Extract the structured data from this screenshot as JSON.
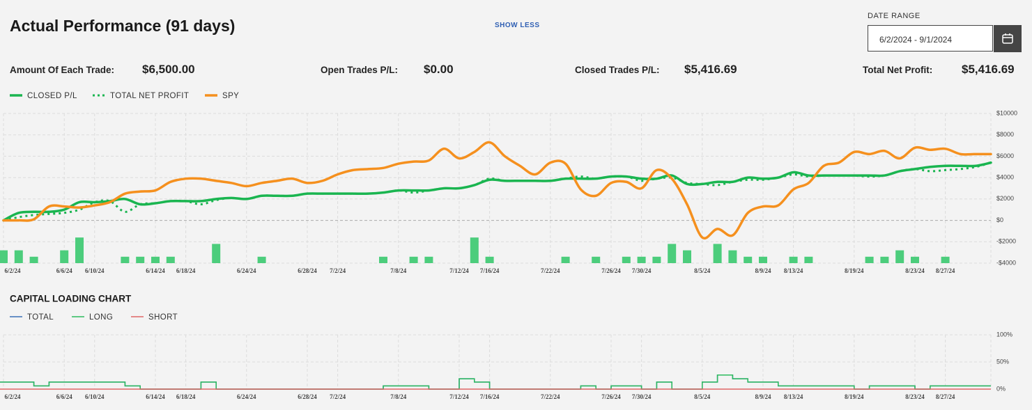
{
  "header": {
    "title": "Actual Performance (91 days)",
    "toggle": "SHOW LESS",
    "date_range": {
      "label": "DATE RANGE",
      "value": "6/2/2024 - 9/1/2024"
    }
  },
  "stats": [
    {
      "label": "Amount Of Each Trade:",
      "value": "$6,500.00"
    },
    {
      "label": "Open Trades P/L:",
      "value": "$0.00"
    },
    {
      "label": "Closed Trades P/L:",
      "value": "$5,416.69"
    },
    {
      "label": "Total Net Profit:",
      "value": "$5,416.69"
    }
  ],
  "charts": [
    {
      "type": "line",
      "categories": [
        "6/2/24",
        null,
        null,
        null,
        "6/6/24",
        null,
        "6/10/24",
        null,
        null,
        null,
        "6/14/24",
        null,
        "6/18/24",
        null,
        null,
        null,
        "6/24/24",
        null,
        null,
        null,
        "6/28/24",
        null,
        "7/2/24",
        null,
        null,
        null,
        "7/8/24",
        null,
        null,
        null,
        "7/12/24",
        null,
        "7/16/24",
        null,
        null,
        null,
        "7/22/24",
        null,
        null,
        null,
        "7/26/24",
        null,
        "7/30/24",
        null,
        null,
        null,
        "8/5/24",
        null,
        null,
        null,
        "8/9/24",
        null,
        "8/13/24",
        null,
        null,
        null,
        "8/19/24",
        null,
        null,
        null,
        "8/23/24",
        null,
        "8/27/24",
        null,
        null,
        null
      ],
      "ylim": [
        -4000,
        10000
      ],
      "yticks": [
        {
          "value": 10000,
          "label": "$10000"
        },
        {
          "value": 8000,
          "label": "$8000"
        },
        {
          "value": 6000,
          "label": "$6000"
        },
        {
          "value": 4000,
          "label": "$4000"
        },
        {
          "value": 2000,
          "label": "$2000"
        },
        {
          "value": 0,
          "label": "$0"
        },
        {
          "value": -2000,
          "label": "-$2000"
        },
        {
          "value": -4000,
          "label": "-$4000"
        }
      ],
      "grid": true,
      "bars": {
        "color": "#4ccd7c",
        "values": [
          2,
          2,
          1,
          0,
          2,
          4,
          0,
          0,
          1,
          1,
          1,
          1,
          0,
          0,
          3,
          0,
          0,
          1,
          0,
          0,
          0,
          0,
          0,
          0,
          0,
          1,
          0,
          1,
          1,
          0,
          0,
          4,
          1,
          0,
          0,
          0,
          0,
          1,
          0,
          1,
          0,
          1,
          1,
          1,
          3,
          2,
          0,
          3,
          2,
          1,
          1,
          0,
          1,
          1,
          0,
          0,
          0,
          1,
          1,
          2,
          1,
          0,
          1,
          0,
          0,
          0
        ]
      },
      "series": [
        {
          "name": "CLOSED P/L",
          "color": "#1ab550",
          "style": "solid",
          "values": [
            0,
            700,
            800,
            800,
            1000,
            1700,
            1700,
            1800,
            2000,
            1500,
            1600,
            1800,
            1800,
            1800,
            2000,
            2100,
            2000,
            2300,
            2300,
            2300,
            2500,
            2500,
            2500,
            2500,
            2500,
            2600,
            2800,
            2800,
            2800,
            3000,
            3000,
            3300,
            3800,
            3700,
            3700,
            3700,
            3700,
            3900,
            3900,
            3900,
            4100,
            4100,
            3900,
            3900,
            4200,
            3400,
            3400,
            3600,
            3600,
            4000,
            3900,
            4000,
            4500,
            4200,
            4200,
            4200,
            4200,
            4200,
            4200,
            4600,
            4800,
            5000,
            5100,
            5100,
            5100,
            5400
          ]
        },
        {
          "name": "TOTAL NET PROFIT",
          "color": "#1ab550",
          "style": "dotted",
          "values": [
            0,
            300,
            500,
            600,
            700,
            1000,
            1700,
            1800,
            800,
            1500,
            1600,
            1800,
            1800,
            1500,
            1900,
            2100,
            2000,
            2300,
            2300,
            2300,
            2500,
            2500,
            2500,
            2500,
            2500,
            2600,
            2800,
            2600,
            2800,
            3000,
            3000,
            3300,
            3900,
            3700,
            3700,
            3700,
            3700,
            3900,
            4100,
            3900,
            4100,
            4100,
            3700,
            3900,
            4000,
            3500,
            3400,
            3300,
            3600,
            3800,
            3800,
            4000,
            4300,
            4100,
            4200,
            4200,
            4200,
            4100,
            4200,
            4600,
            4800,
            4600,
            4700,
            4800,
            5000,
            5400
          ]
        },
        {
          "name": "SPY",
          "color": "#f5901e",
          "style": "solid",
          "values": [
            0,
            0,
            100,
            1300,
            1300,
            1200,
            1400,
            1700,
            2500,
            2700,
            2800,
            3600,
            3900,
            3900,
            3700,
            3500,
            3200,
            3500,
            3700,
            3900,
            3500,
            3700,
            4300,
            4700,
            4800,
            4900,
            5300,
            5500,
            5600,
            6700,
            5800,
            6400,
            7300,
            6000,
            5100,
            4300,
            5400,
            5300,
            2900,
            2300,
            3500,
            3600,
            3000,
            4700,
            3900,
            1500,
            -1600,
            -800,
            -1400,
            700,
            1300,
            1400,
            2900,
            3500,
            5100,
            5400,
            6400,
            6200,
            6500,
            5800,
            6800,
            6600,
            6700,
            6200,
            6200,
            6200
          ]
        }
      ]
    },
    {
      "type": "step",
      "title": "CAPITAL LOADING CHART",
      "ylim": [
        0,
        100
      ],
      "yticks": [
        {
          "value": 100,
          "label": "100%"
        },
        {
          "value": 50,
          "label": "50%"
        },
        {
          "value": 0,
          "label": "0%"
        }
      ],
      "grid": true,
      "series": [
        {
          "name": "TOTAL",
          "color": "#3a6fb7",
          "values": [
            13,
            13,
            13,
            6,
            13,
            13,
            13,
            13,
            13,
            6,
            0,
            0,
            0,
            0,
            13,
            0,
            0,
            0,
            0,
            0,
            0,
            0,
            0,
            0,
            0,
            0,
            6,
            6,
            6,
            0,
            0,
            19,
            13,
            0,
            0,
            0,
            0,
            0,
            0,
            6,
            0,
            6,
            6,
            0,
            13,
            0,
            0,
            13,
            26,
            19,
            13,
            13,
            6,
            6,
            6,
            6,
            6,
            0,
            6,
            6,
            6,
            0,
            6,
            6,
            6,
            6
          ]
        },
        {
          "name": "LONG",
          "color": "#2dbb5d",
          "values": [
            13,
            13,
            13,
            6,
            13,
            13,
            13,
            13,
            13,
            6,
            0,
            0,
            0,
            0,
            13,
            0,
            0,
            0,
            0,
            0,
            0,
            0,
            0,
            0,
            0,
            0,
            6,
            6,
            6,
            0,
            0,
            19,
            13,
            0,
            0,
            0,
            0,
            0,
            0,
            6,
            0,
            6,
            6,
            0,
            13,
            0,
            0,
            13,
            26,
            19,
            13,
            13,
            6,
            6,
            6,
            6,
            6,
            0,
            6,
            6,
            6,
            0,
            6,
            6,
            6,
            6
          ]
        },
        {
          "name": "SHORT",
          "color": "#e06666",
          "values": [
            0,
            0,
            0,
            0,
            0,
            0,
            0,
            0,
            0,
            0,
            0,
            0,
            0,
            0,
            0,
            0,
            0,
            0,
            0,
            0,
            0,
            0,
            0,
            0,
            0,
            0,
            0,
            0,
            0,
            0,
            0,
            0,
            0,
            0,
            0,
            0,
            0,
            0,
            0,
            0,
            0,
            0,
            0,
            0,
            0,
            0,
            0,
            0,
            0,
            0,
            0,
            0,
            0,
            0,
            0,
            0,
            0,
            0,
            0,
            0,
            0,
            0,
            0,
            0,
            0,
            0
          ]
        }
      ]
    }
  ]
}
